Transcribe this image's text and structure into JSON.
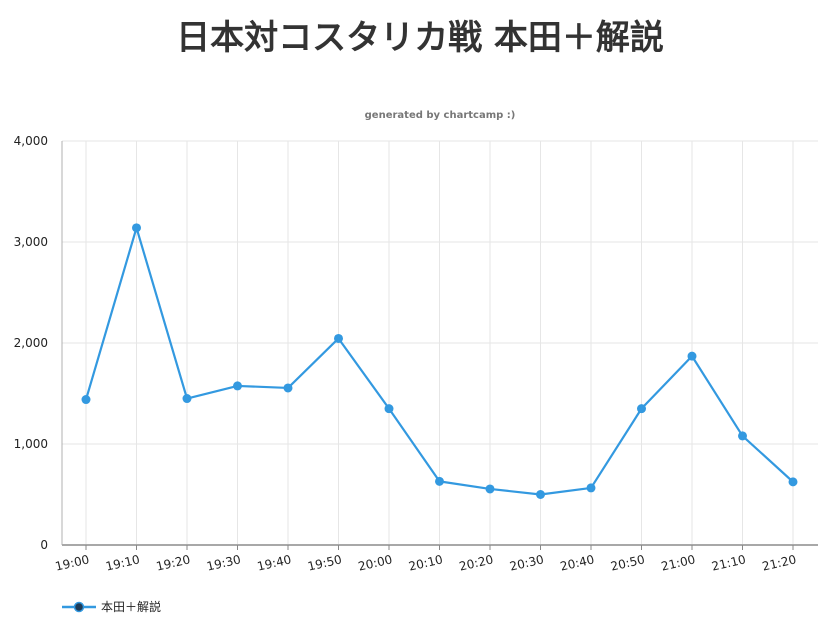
{
  "page": {
    "title": "日本対コスタリカ戦 本田＋解説"
  },
  "chart_data": {
    "type": "line",
    "title": "日本対コスタリカ戦 本田＋解説",
    "subtitle": "generated by chartcamp :)",
    "xlabel": "",
    "ylabel": "",
    "categories": [
      "19:00",
      "19:10",
      "19:20",
      "19:30",
      "19:40",
      "19:50",
      "20:00",
      "20:10",
      "20:20",
      "20:30",
      "20:40",
      "20:50",
      "21:00",
      "21:10",
      "21:20"
    ],
    "series": [
      {
        "name": "本田＋解説",
        "values": [
          1440,
          3140,
          1450,
          1575,
          1555,
          2045,
          1350,
          630,
          555,
          500,
          565,
          1350,
          1870,
          1080,
          625
        ],
        "color": "#3399e0"
      }
    ],
    "ylim": [
      0,
      4000
    ],
    "yticks": [
      0,
      1000,
      2000,
      3000,
      4000
    ],
    "ytick_labels": [
      "0",
      "1,000",
      "2,000",
      "3,000",
      "4,000"
    ],
    "grid": true,
    "legend_position": "bottom-left"
  }
}
